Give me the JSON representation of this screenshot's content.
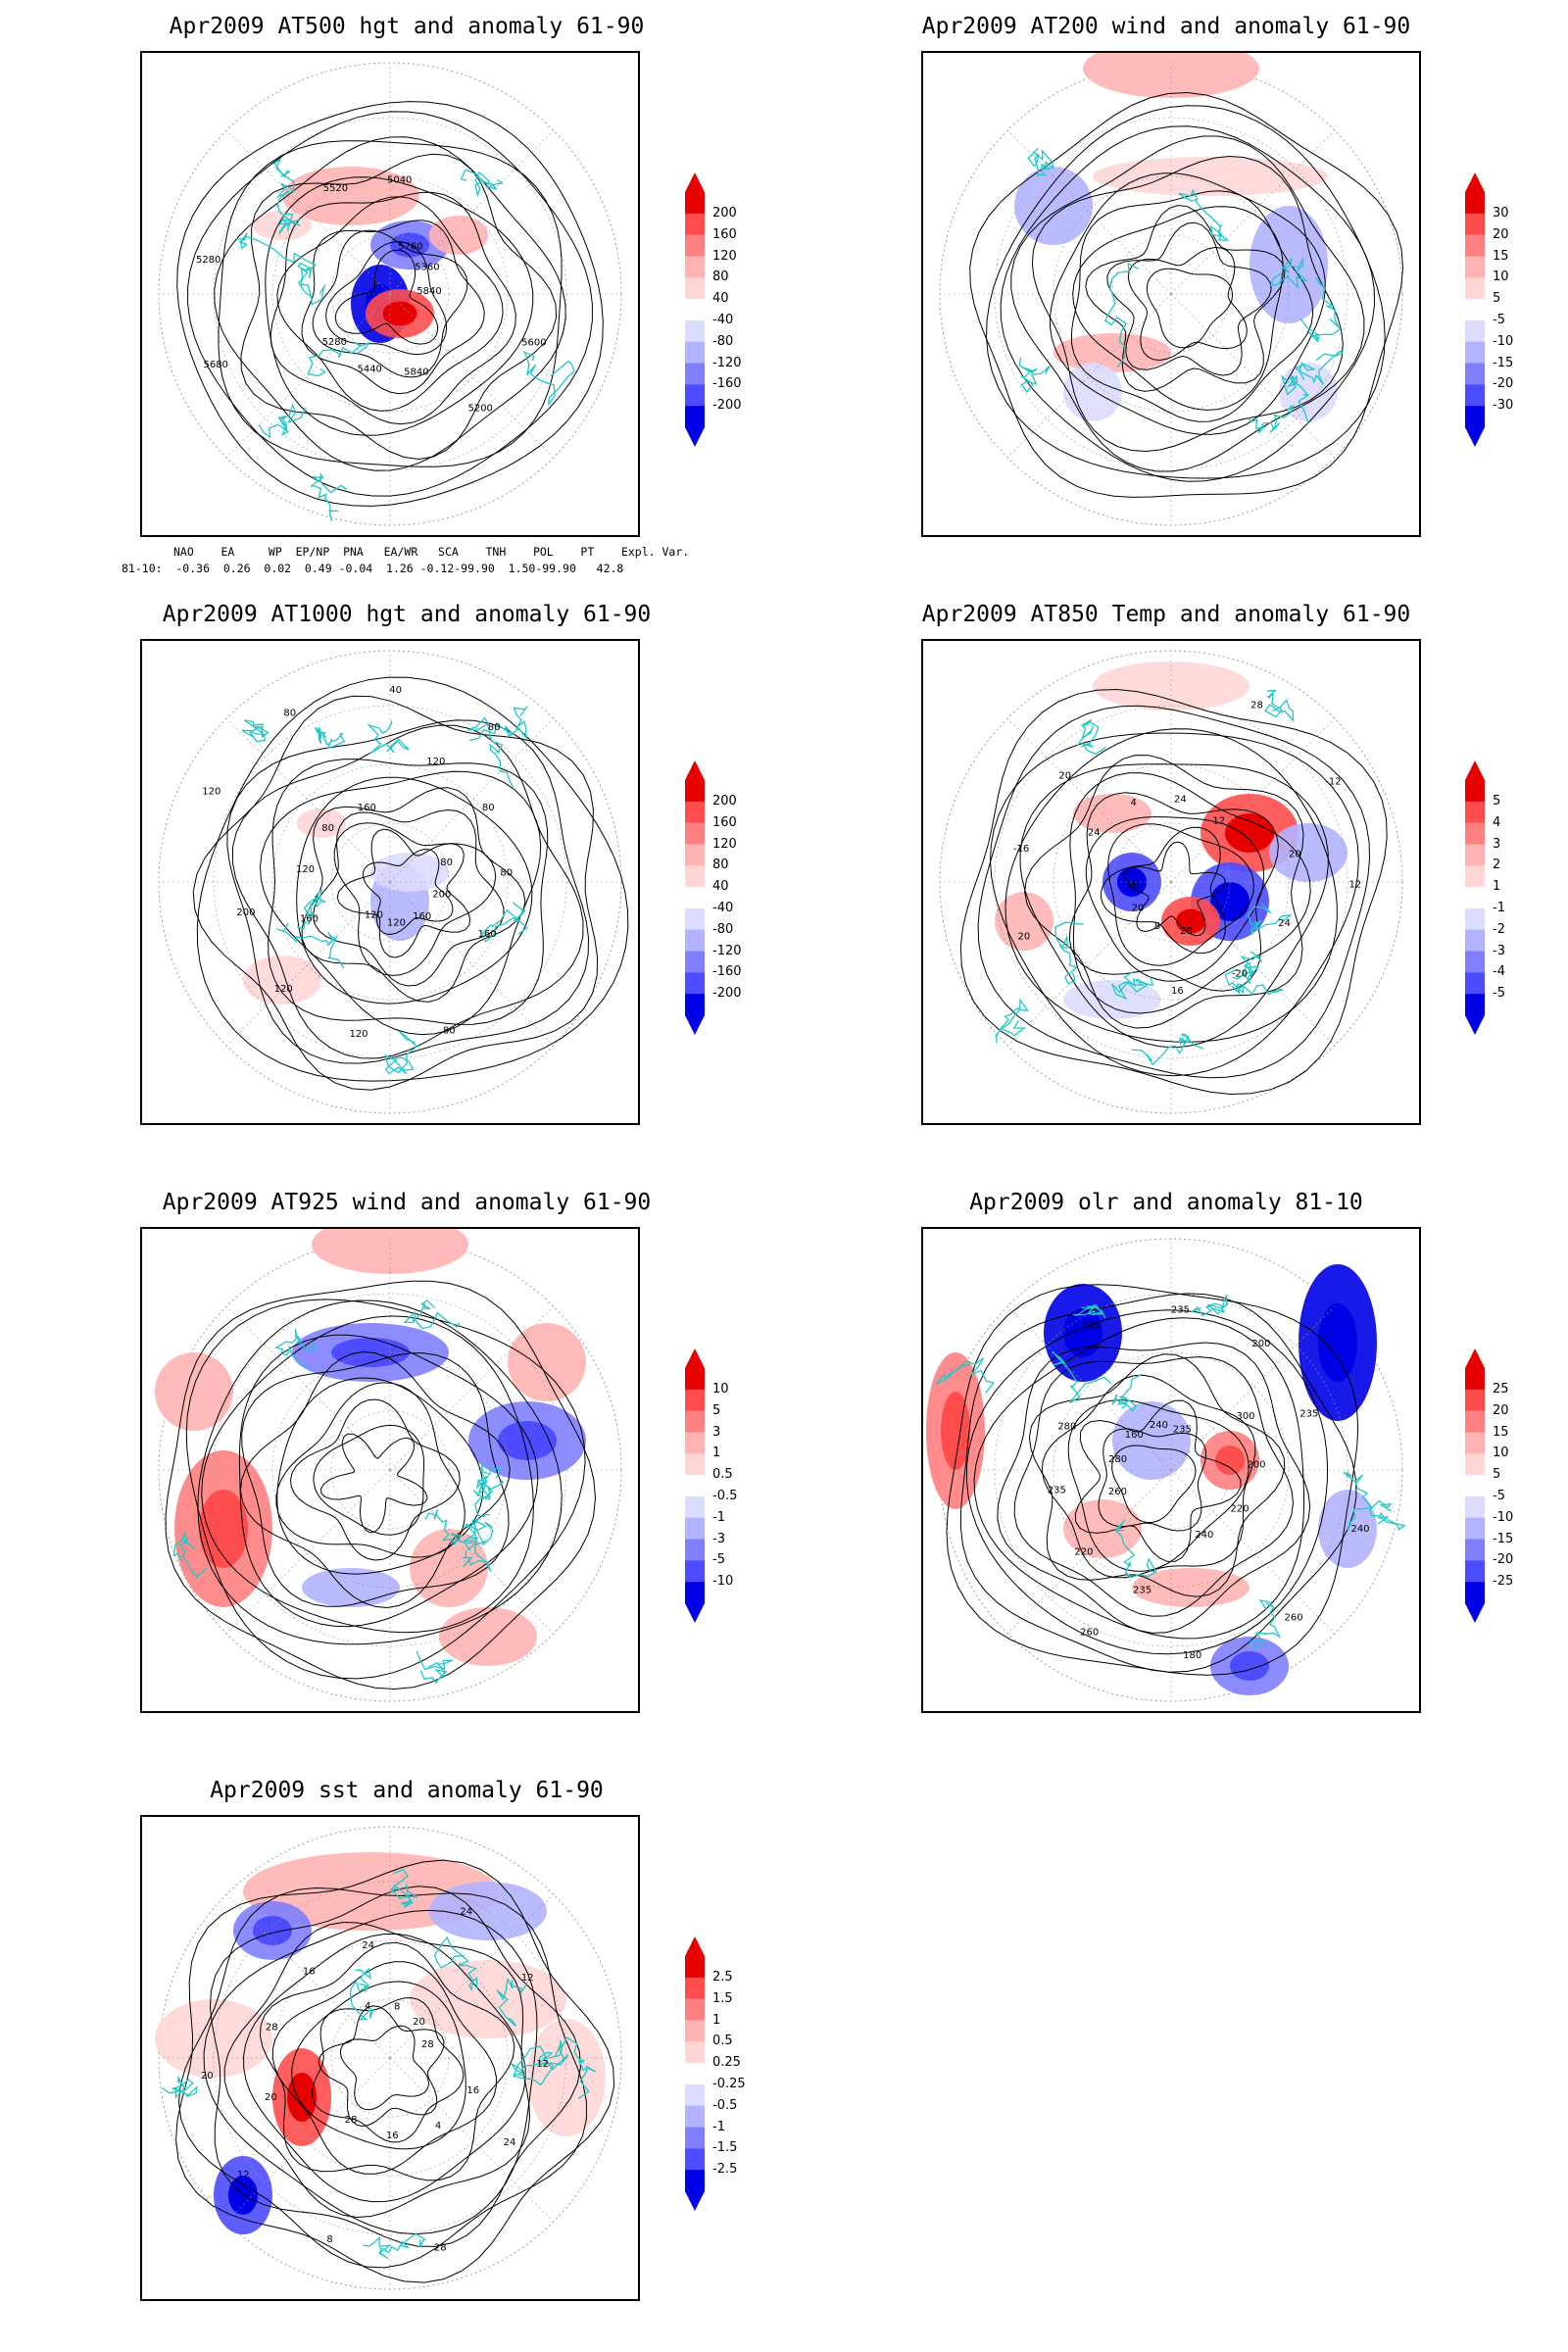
{
  "page": {
    "background": "#ffffff"
  },
  "palette": {
    "coast": "#20c8c8",
    "contour": "#000000",
    "pos": [
      "#ffd6d6",
      "#ffb3b3",
      "#ff8080",
      "#ff4d4d",
      "#e60000"
    ],
    "neg": [
      "#dcdcff",
      "#b3b3ff",
      "#8080ff",
      "#4d4dff",
      "#0000e6"
    ]
  },
  "indices": {
    "header": "NAO    EA     WP  EP/NP  PNA   EA/WR   SCA    TNH    POL    PT    Expl. Var.",
    "row": "81-10:  -0.36  0.26  0.02  0.49 -0.04  1.26 -0.12-99.90  1.50-99.90   42.8"
  },
  "chart_data": [
    {
      "type": "heatmap",
      "title": "Apr2009 AT500 hgt and anomaly 61-90",
      "colorbar": [
        "200",
        "160",
        "120",
        "80",
        "40",
        "-40",
        "-80",
        "-120",
        "-160",
        "-200"
      ],
      "contour_labels": [
        "5840",
        "5280",
        "5040",
        "5200",
        "5280",
        "5360",
        "5440",
        "5520",
        "5600",
        "5680",
        "5760",
        "5840"
      ]
    },
    {
      "type": "heatmap",
      "title": "Apr2009 AT200 wind and anomaly 61-90",
      "colorbar": [
        "30",
        "20",
        "15",
        "10",
        "5",
        "-5",
        "-10",
        "-15",
        "-20",
        "-30"
      ],
      "contour_labels": []
    },
    {
      "type": "heatmap",
      "title": "Apr2009 AT1000 hgt and anomaly 61-90",
      "colorbar": [
        "200",
        "160",
        "120",
        "80",
        "40",
        "-40",
        "-80",
        "-120",
        "-160",
        "-200"
      ],
      "contour_labels": [
        "120",
        "160",
        "160",
        "200",
        "80",
        "120",
        "80",
        "80",
        "120",
        "40",
        "160",
        "120",
        "80",
        "120",
        "80",
        "200",
        "160",
        "120",
        "80",
        "120",
        "80"
      ]
    },
    {
      "type": "heatmap",
      "title": "Apr2009 AT850 Temp and anomaly 61-90",
      "colorbar": [
        "5",
        "4",
        "3",
        "2",
        "1",
        "-1",
        "-2",
        "-3",
        "-4",
        "-5"
      ],
      "contour_labels": [
        "16",
        "12",
        "16",
        "20",
        "12",
        "20",
        "24",
        "-20",
        "-16",
        "-12",
        "8",
        "4",
        "24",
        "20",
        "28",
        "28",
        "24",
        "20"
      ]
    },
    {
      "type": "heatmap",
      "title": "Apr2009 AT925 wind and anomaly 61-90",
      "colorbar": [
        "10",
        "5",
        "3",
        "1",
        "0.5",
        "-0.5",
        "-1",
        "-3",
        "-5",
        "-10"
      ],
      "contour_labels": []
    },
    {
      "type": "heatmap",
      "title": "Apr2009 olr and anomaly 81-10",
      "colorbar": [
        "25",
        "20",
        "15",
        "10",
        "5",
        "-5",
        "-10",
        "-15",
        "-20",
        "-25"
      ],
      "contour_labels": [
        "235",
        "240",
        "280",
        "235",
        "260",
        "240",
        "220",
        "235",
        "200",
        "180",
        "160",
        "200",
        "220",
        "235",
        "260",
        "280",
        "300",
        "235",
        "220",
        "240",
        "260"
      ]
    },
    {
      "type": "heatmap",
      "title": "Apr2009 sst and anomaly 61-90",
      "colorbar": [
        "2.5",
        "1.5",
        "1",
        "0.5",
        "0.25",
        "-0.25",
        "-0.5",
        "-1",
        "-1.5",
        "-2.5"
      ],
      "contour_labels": [
        "28",
        "28",
        "24",
        "24",
        "20",
        "20",
        "16",
        "16",
        "12",
        "12",
        "8",
        "4",
        "28",
        "12",
        "8",
        "4",
        "16",
        "20",
        "24",
        "28"
      ]
    }
  ]
}
